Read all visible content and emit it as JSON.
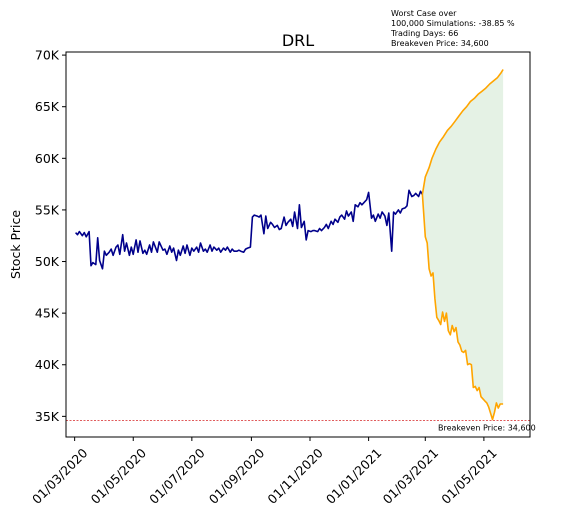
{
  "chart_data": {
    "type": "line",
    "title": "DRL",
    "ylabel": "Stock Price",
    "xlabel": "",
    "ylim": [
      33000,
      70300
    ],
    "xlim": [
      "2020-02-21",
      "2021-06-18"
    ],
    "grid": false,
    "y_ticks": [
      35000,
      40000,
      45000,
      50000,
      55000,
      60000,
      65000,
      70000
    ],
    "y_tick_labels": [
      "35K",
      "40K",
      "45K",
      "50K",
      "55K",
      "60K",
      "65K",
      "70K"
    ],
    "x_ticks": [
      "2020-03-01",
      "2020-05-01",
      "2020-07-01",
      "2020-09-01",
      "2020-11-01",
      "2021-01-01",
      "2021-03-01",
      "2021-05-01"
    ],
    "x_tick_labels": [
      "01/03/2020",
      "01/05/2020",
      "01/07/2020",
      "01/09/2020",
      "01/11/2020",
      "01/01/2021",
      "01/03/2021",
      "01/05/2021"
    ],
    "annotation_lines": [
      "Worst Case over",
      "100,000 Simulations: -38.85 %",
      "Trading Days: 66",
      "Breakeven Price: 34,600"
    ],
    "breakeven": {
      "value": 34600,
      "label": "Breakeven Price: 34,600",
      "color": "#d62728"
    },
    "series": [
      {
        "color": "#00008b",
        "points": [
          [
            "2020-03-02",
            52800
          ],
          [
            "2020-03-04",
            52600
          ],
          [
            "2020-03-06",
            52900
          ],
          [
            "2020-03-09",
            52500
          ],
          [
            "2020-03-11",
            52800
          ],
          [
            "2020-03-13",
            52400
          ],
          [
            "2020-03-16",
            52900
          ],
          [
            "2020-03-18",
            49600
          ],
          [
            "2020-03-20",
            49900
          ],
          [
            "2020-03-23",
            49700
          ],
          [
            "2020-03-25",
            52300
          ],
          [
            "2020-03-27",
            50100
          ],
          [
            "2020-03-30",
            49300
          ],
          [
            "2020-04-01",
            51000
          ],
          [
            "2020-04-03",
            50600
          ],
          [
            "2020-04-06",
            50900
          ],
          [
            "2020-04-08",
            51200
          ],
          [
            "2020-04-10",
            50600
          ],
          [
            "2020-04-13",
            51400
          ],
          [
            "2020-04-15",
            51600
          ],
          [
            "2020-04-17",
            50700
          ],
          [
            "2020-04-20",
            52600
          ],
          [
            "2020-04-22",
            51000
          ],
          [
            "2020-04-24",
            51800
          ],
          [
            "2020-04-27",
            50600
          ],
          [
            "2020-04-29",
            51400
          ],
          [
            "2020-05-01",
            50700
          ],
          [
            "2020-05-04",
            52100
          ],
          [
            "2020-05-06",
            50900
          ],
          [
            "2020-05-08",
            52000
          ],
          [
            "2020-05-11",
            50800
          ],
          [
            "2020-05-13",
            51100
          ],
          [
            "2020-05-15",
            50700
          ],
          [
            "2020-05-18",
            51600
          ],
          [
            "2020-05-20",
            50900
          ],
          [
            "2020-05-22",
            51900
          ],
          [
            "2020-05-26",
            50900
          ],
          [
            "2020-05-28",
            51900
          ],
          [
            "2020-06-01",
            51100
          ],
          [
            "2020-06-03",
            51200
          ],
          [
            "2020-06-05",
            50700
          ],
          [
            "2020-06-08",
            51500
          ],
          [
            "2020-06-10",
            50900
          ],
          [
            "2020-06-12",
            51300
          ],
          [
            "2020-06-15",
            50100
          ],
          [
            "2020-06-17",
            51100
          ],
          [
            "2020-06-19",
            50600
          ],
          [
            "2020-06-22",
            51500
          ],
          [
            "2020-06-24",
            50800
          ],
          [
            "2020-06-26",
            51600
          ],
          [
            "2020-06-29",
            50600
          ],
          [
            "2020-07-01",
            51300
          ],
          [
            "2020-07-03",
            51000
          ],
          [
            "2020-07-06",
            51400
          ],
          [
            "2020-07-08",
            50900
          ],
          [
            "2020-07-10",
            51800
          ],
          [
            "2020-07-13",
            51000
          ],
          [
            "2020-07-15",
            51200
          ],
          [
            "2020-07-17",
            50900
          ],
          [
            "2020-07-20",
            51600
          ],
          [
            "2020-07-22",
            51000
          ],
          [
            "2020-07-24",
            51400
          ],
          [
            "2020-07-27",
            51100
          ],
          [
            "2020-07-29",
            51300
          ],
          [
            "2020-07-31",
            50900
          ],
          [
            "2020-08-03",
            51300
          ],
          [
            "2020-08-05",
            51100
          ],
          [
            "2020-08-07",
            51400
          ],
          [
            "2020-08-10",
            50900
          ],
          [
            "2020-08-12",
            51200
          ],
          [
            "2020-08-14",
            51000
          ],
          [
            "2020-08-17",
            51000
          ],
          [
            "2020-08-19",
            51100
          ],
          [
            "2020-08-21",
            51000
          ],
          [
            "2020-08-24",
            50900
          ],
          [
            "2020-08-26",
            51200
          ],
          [
            "2020-08-28",
            51300
          ],
          [
            "2020-08-31",
            51400
          ],
          [
            "2020-09-02",
            54300
          ],
          [
            "2020-09-04",
            54500
          ],
          [
            "2020-09-07",
            54400
          ],
          [
            "2020-09-09",
            54300
          ],
          [
            "2020-09-11",
            54500
          ],
          [
            "2020-09-14",
            52700
          ],
          [
            "2020-09-16",
            54400
          ],
          [
            "2020-09-18",
            53200
          ],
          [
            "2020-09-21",
            53800
          ],
          [
            "2020-09-23",
            53600
          ],
          [
            "2020-09-25",
            53300
          ],
          [
            "2020-09-28",
            53500
          ],
          [
            "2020-09-30",
            53100
          ],
          [
            "2020-10-02",
            53200
          ],
          [
            "2020-10-05",
            54300
          ],
          [
            "2020-10-07",
            53500
          ],
          [
            "2020-10-09",
            53800
          ],
          [
            "2020-10-12",
            54100
          ],
          [
            "2020-10-14",
            53400
          ],
          [
            "2020-10-16",
            54800
          ],
          [
            "2020-10-19",
            53200
          ],
          [
            "2020-10-21",
            55500
          ],
          [
            "2020-10-23",
            53300
          ],
          [
            "2020-10-26",
            53900
          ],
          [
            "2020-10-28",
            52100
          ],
          [
            "2020-10-30",
            53000
          ],
          [
            "2020-11-02",
            52900
          ],
          [
            "2020-11-04",
            53000
          ],
          [
            "2020-11-06",
            53000
          ],
          [
            "2020-11-09",
            52900
          ],
          [
            "2020-11-11",
            53200
          ],
          [
            "2020-11-13",
            53000
          ],
          [
            "2020-11-16",
            53300
          ],
          [
            "2020-11-18",
            53600
          ],
          [
            "2020-11-20",
            53200
          ],
          [
            "2020-11-23",
            53900
          ],
          [
            "2020-11-25",
            53600
          ],
          [
            "2020-11-27",
            54100
          ],
          [
            "2020-11-30",
            53800
          ],
          [
            "2020-12-02",
            54300
          ],
          [
            "2020-12-04",
            54500
          ],
          [
            "2020-12-07",
            54100
          ],
          [
            "2020-12-09",
            54900
          ],
          [
            "2020-12-11",
            54400
          ],
          [
            "2020-12-14",
            54800
          ],
          [
            "2020-12-16",
            53900
          ],
          [
            "2020-12-18",
            55500
          ],
          [
            "2020-12-21",
            55300
          ],
          [
            "2020-12-23",
            55700
          ],
          [
            "2020-12-25",
            55500
          ],
          [
            "2020-12-28",
            55800
          ],
          [
            "2020-12-30",
            56000
          ],
          [
            "2021-01-01",
            56700
          ],
          [
            "2021-01-04",
            54200
          ],
          [
            "2021-01-06",
            54500
          ],
          [
            "2021-01-08",
            53900
          ],
          [
            "2021-01-11",
            54600
          ],
          [
            "2021-01-13",
            54200
          ],
          [
            "2021-01-15",
            54800
          ],
          [
            "2021-01-18",
            54400
          ],
          [
            "2021-01-20",
            53500
          ],
          [
            "2021-01-22",
            54700
          ],
          [
            "2021-01-25",
            51000
          ],
          [
            "2021-01-27",
            54800
          ],
          [
            "2021-01-29",
            54600
          ],
          [
            "2021-02-01",
            55000
          ],
          [
            "2021-02-03",
            54700
          ],
          [
            "2021-02-05",
            55100
          ],
          [
            "2021-02-08",
            55200
          ],
          [
            "2021-02-10",
            55400
          ],
          [
            "2021-02-12",
            56900
          ],
          [
            "2021-02-15",
            56300
          ],
          [
            "2021-02-17",
            56400
          ],
          [
            "2021-02-19",
            56600
          ],
          [
            "2021-02-22",
            56300
          ],
          [
            "2021-02-24",
            56800
          ],
          [
            "2021-02-26",
            56500
          ]
        ]
      },
      {
        "color": "#ffa500",
        "points": [
          [
            "2021-02-26",
            56500
          ],
          [
            "2021-03-01",
            58200
          ],
          [
            "2021-03-05",
            59100
          ],
          [
            "2021-03-08",
            60000
          ],
          [
            "2021-03-12",
            60900
          ],
          [
            "2021-03-16",
            61600
          ],
          [
            "2021-03-20",
            62100
          ],
          [
            "2021-03-24",
            62700
          ],
          [
            "2021-03-28",
            63100
          ],
          [
            "2021-04-01",
            63600
          ],
          [
            "2021-04-05",
            64100
          ],
          [
            "2021-04-09",
            64600
          ],
          [
            "2021-04-13",
            65000
          ],
          [
            "2021-04-17",
            65500
          ],
          [
            "2021-04-21",
            65800
          ],
          [
            "2021-04-25",
            66200
          ],
          [
            "2021-04-29",
            66500
          ],
          [
            "2021-05-03",
            66800
          ],
          [
            "2021-05-07",
            67200
          ],
          [
            "2021-05-11",
            67500
          ],
          [
            "2021-05-15",
            67800
          ],
          [
            "2021-05-19",
            68300
          ],
          [
            "2021-05-21",
            68600
          ]
        ]
      },
      {
        "color": "#ffa500",
        "points": [
          [
            "2021-02-26",
            56500
          ],
          [
            "2021-03-01",
            52400
          ],
          [
            "2021-03-03",
            51800
          ],
          [
            "2021-03-05",
            49300
          ],
          [
            "2021-03-07",
            48600
          ],
          [
            "2021-03-09",
            48900
          ],
          [
            "2021-03-11",
            46400
          ],
          [
            "2021-03-13",
            44600
          ],
          [
            "2021-03-15",
            44300
          ],
          [
            "2021-03-17",
            43900
          ],
          [
            "2021-03-19",
            45100
          ],
          [
            "2021-03-21",
            44200
          ],
          [
            "2021-03-23",
            45000
          ],
          [
            "2021-03-25",
            43300
          ],
          [
            "2021-03-27",
            42900
          ],
          [
            "2021-03-29",
            43800
          ],
          [
            "2021-03-31",
            43200
          ],
          [
            "2021-04-02",
            43600
          ],
          [
            "2021-04-04",
            42200
          ],
          [
            "2021-04-06",
            41900
          ],
          [
            "2021-04-08",
            41300
          ],
          [
            "2021-04-10",
            41200
          ],
          [
            "2021-04-12",
            41400
          ],
          [
            "2021-04-14",
            40000
          ],
          [
            "2021-04-16",
            40100
          ],
          [
            "2021-04-18",
            40000
          ],
          [
            "2021-04-20",
            37800
          ],
          [
            "2021-04-22",
            37900
          ],
          [
            "2021-04-24",
            37500
          ],
          [
            "2021-04-26",
            37800
          ],
          [
            "2021-04-28",
            36900
          ],
          [
            "2021-04-30",
            36700
          ],
          [
            "2021-05-02",
            36500
          ],
          [
            "2021-05-04",
            36300
          ],
          [
            "2021-05-06",
            35900
          ],
          [
            "2021-05-08",
            35300
          ],
          [
            "2021-05-10",
            34700
          ],
          [
            "2021-05-12",
            35400
          ],
          [
            "2021-05-14",
            36300
          ],
          [
            "2021-05-16",
            35800
          ],
          [
            "2021-05-18",
            36200
          ],
          [
            "2021-05-21",
            36200
          ]
        ]
      }
    ],
    "band": {
      "color": "#e5f2e5",
      "upper_series": 1,
      "lower_series": 2
    }
  }
}
